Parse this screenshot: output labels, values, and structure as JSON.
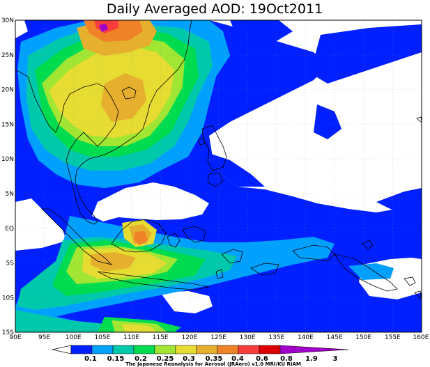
{
  "title": "Daily Averaged AOD: 19Oct2011",
  "credit": "The Japanese Reanalysis for Aerosol (JRAero) v1.0 MRI/KU RIAM",
  "x_ticks": [
    "90E",
    "95E",
    "100E",
    "105E",
    "110E",
    "115E",
    "120E",
    "125E",
    "130E",
    "135E",
    "140E",
    "145E",
    "150E",
    "155E",
    "160E"
  ],
  "y_ticks": [
    "30N",
    "25N",
    "20N",
    "15N",
    "10N",
    "5N",
    "EQ",
    "5S",
    "10S",
    "15S"
  ],
  "colorbar": {
    "levels": [
      "0.1",
      "0.15",
      "0.2",
      "0.25",
      "0.3",
      "0.35",
      "0.4",
      "0.6",
      "0.8",
      "1.9",
      "3"
    ],
    "colors": [
      "#ffffff",
      "#0020ff",
      "#00a0ff",
      "#00c8aa",
      "#00dc50",
      "#a0e632",
      "#e6dc32",
      "#e6af2d",
      "#f08228",
      "#fa3c3c",
      "#a000c8"
    ]
  },
  "map": {
    "lon_range": [
      90,
      160
    ],
    "lat_range": [
      -15,
      30
    ]
  }
}
